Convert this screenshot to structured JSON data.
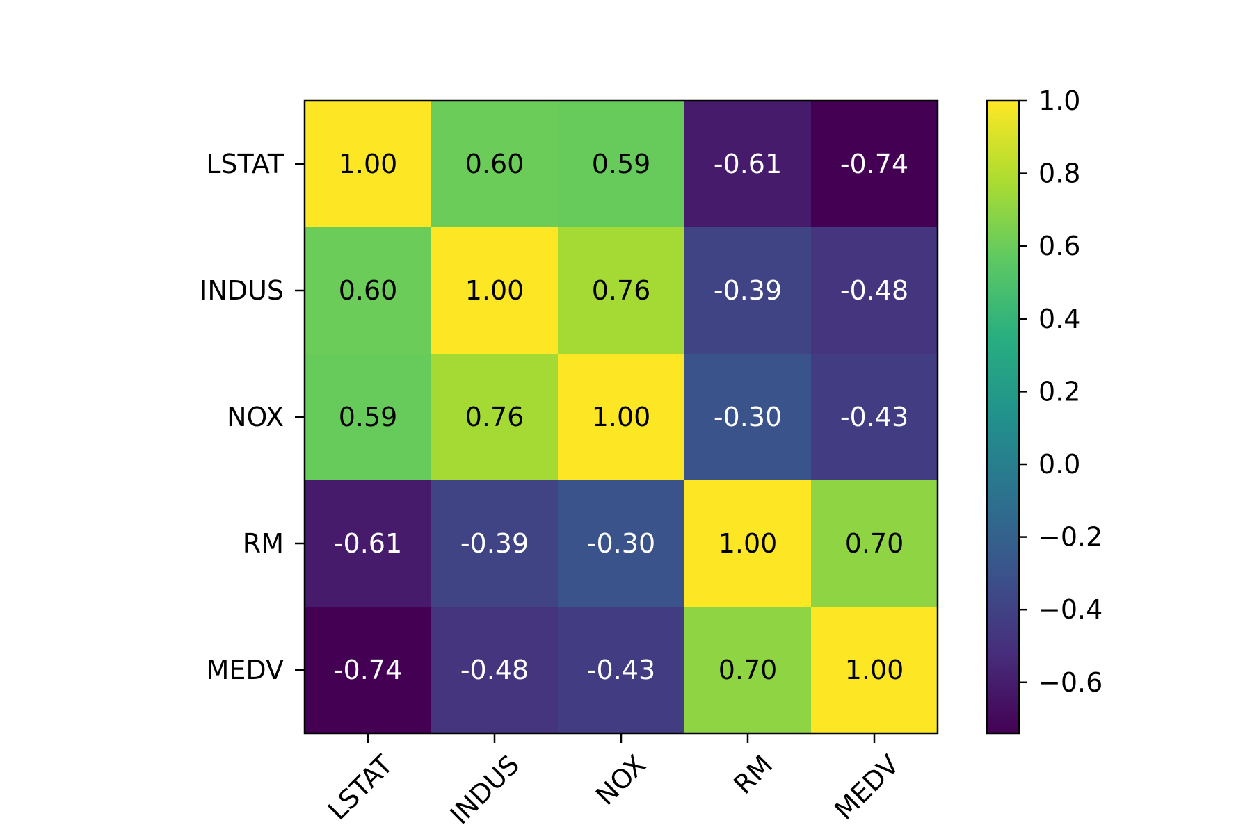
{
  "chart_data": {
    "type": "heatmap",
    "title": "",
    "xlabel": "",
    "ylabel": "",
    "x_categories": [
      "LSTAT",
      "INDUS",
      "NOX",
      "RM",
      "MEDV"
    ],
    "y_categories": [
      "LSTAT",
      "INDUS",
      "NOX",
      "RM",
      "MEDV"
    ],
    "values": [
      [
        1.0,
        0.6,
        0.59,
        -0.61,
        -0.74
      ],
      [
        0.6,
        1.0,
        0.76,
        -0.39,
        -0.48
      ],
      [
        0.59,
        0.76,
        1.0,
        -0.3,
        -0.43
      ],
      [
        -0.61,
        -0.39,
        -0.3,
        1.0,
        0.7
      ],
      [
        -0.74,
        -0.48,
        -0.43,
        0.7,
        1.0
      ]
    ],
    "value_format_decimals": 2,
    "x_tick_rotation_deg": -45,
    "colormap": "viridis",
    "colorbar": {
      "min": -0.74,
      "max": 1.0,
      "ticks": [
        1.0,
        0.8,
        0.6,
        0.4,
        0.2,
        0.0,
        -0.2,
        -0.4,
        -0.6
      ],
      "tick_labels": [
        "1.0",
        "0.8",
        "0.6",
        "0.4",
        "0.2",
        "0.0",
        "−0.2",
        "−0.4",
        "−0.6"
      ],
      "location": "right"
    },
    "grid": false,
    "label_color_dark_bg": "#ffffff",
    "label_color_light_bg": "#000000"
  }
}
